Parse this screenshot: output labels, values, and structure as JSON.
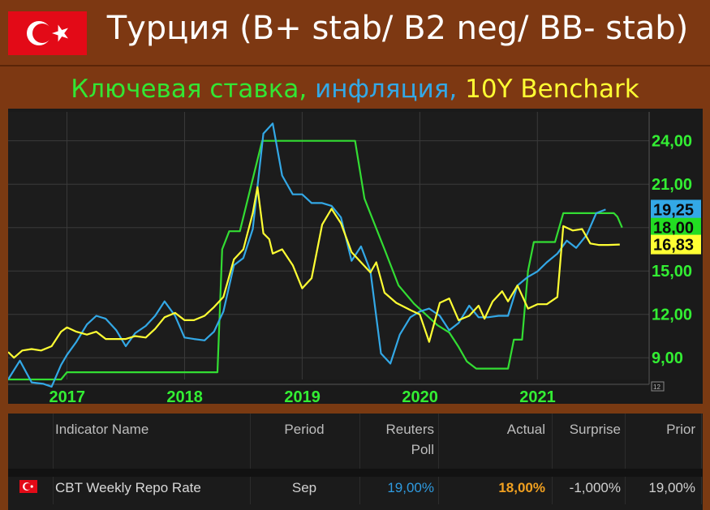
{
  "header": {
    "title": "Турция (B+ stab/ B2 neg/ BB- stab)",
    "flag_icon": "turkey-flag-icon"
  },
  "subtitle": {
    "part1": "Ключевая ставка,",
    "part2": " инфляция,",
    "part3": " 10Y Benchark",
    "colors": {
      "part1": "#33e633",
      "part2": "#33a8e6",
      "part3": "#ffff33"
    }
  },
  "chart_data": {
    "type": "line",
    "x_tick_labels": [
      "2017",
      "2018",
      "2019",
      "2020",
      "2021"
    ],
    "y_tick_labels": [
      "24,00",
      "21,00",
      "18,00",
      "15,00",
      "12,00",
      "9,00"
    ],
    "ylim": [
      7.5,
      26
    ],
    "xlim": [
      2016.5,
      2021.95
    ],
    "grid": true,
    "end_badges": [
      {
        "label": "19,25",
        "series": "inflation",
        "value": 19.25,
        "bg": "#33a8e6"
      },
      {
        "label": "18,00",
        "series": "policy_rate",
        "value": 18.0,
        "bg": "#22dd22"
      },
      {
        "label": "16,83",
        "series": "bond_10y",
        "value": 16.83,
        "bg": "#ffff33"
      }
    ],
    "small_tag": "12",
    "series": [
      {
        "key": "policy_rate",
        "color": "#33dd33",
        "points": [
          [
            2016.5,
            7.5
          ],
          [
            2016.95,
            7.5
          ],
          [
            2017.0,
            8.0
          ],
          [
            2018.28,
            8.0
          ],
          [
            2018.32,
            16.5
          ],
          [
            2018.38,
            17.75
          ],
          [
            2018.47,
            17.75
          ],
          [
            2018.66,
            24.0
          ],
          [
            2019.45,
            24.0
          ],
          [
            2019.53,
            20.0
          ],
          [
            2019.7,
            16.5
          ],
          [
            2019.82,
            14.0
          ],
          [
            2019.95,
            12.75
          ],
          [
            2020.05,
            12.0
          ],
          [
            2020.15,
            11.25
          ],
          [
            2020.25,
            10.75
          ],
          [
            2020.33,
            9.75
          ],
          [
            2020.4,
            8.75
          ],
          [
            2020.48,
            8.25
          ],
          [
            2020.75,
            8.25
          ],
          [
            2020.8,
            10.25
          ],
          [
            2020.87,
            10.25
          ],
          [
            2020.92,
            15.0
          ],
          [
            2020.97,
            17.0
          ],
          [
            2021.15,
            17.0
          ],
          [
            2021.22,
            19.0
          ],
          [
            2021.65,
            19.0
          ],
          [
            2021.68,
            18.75
          ],
          [
            2021.72,
            18.0
          ]
        ]
      },
      {
        "key": "inflation",
        "color": "#33a8e6",
        "points": [
          [
            2016.5,
            7.5
          ],
          [
            2016.6,
            8.8
          ],
          [
            2016.7,
            7.3
          ],
          [
            2016.8,
            7.2
          ],
          [
            2016.87,
            7.0
          ],
          [
            2016.95,
            8.5
          ],
          [
            2017.0,
            9.2
          ],
          [
            2017.08,
            10.1
          ],
          [
            2017.17,
            11.3
          ],
          [
            2017.25,
            11.9
          ],
          [
            2017.33,
            11.7
          ],
          [
            2017.42,
            10.9
          ],
          [
            2017.5,
            9.8
          ],
          [
            2017.58,
            10.7
          ],
          [
            2017.67,
            11.2
          ],
          [
            2017.75,
            11.9
          ],
          [
            2017.83,
            12.9
          ],
          [
            2017.92,
            11.9
          ],
          [
            2018.0,
            10.4
          ],
          [
            2018.08,
            10.3
          ],
          [
            2018.17,
            10.2
          ],
          [
            2018.25,
            10.8
          ],
          [
            2018.33,
            12.2
          ],
          [
            2018.42,
            15.4
          ],
          [
            2018.5,
            15.9
          ],
          [
            2018.58,
            17.9
          ],
          [
            2018.67,
            24.5
          ],
          [
            2018.75,
            25.2
          ],
          [
            2018.83,
            21.6
          ],
          [
            2018.92,
            20.3
          ],
          [
            2019.0,
            20.3
          ],
          [
            2019.08,
            19.7
          ],
          [
            2019.17,
            19.7
          ],
          [
            2019.25,
            19.5
          ],
          [
            2019.33,
            18.7
          ],
          [
            2019.42,
            15.7
          ],
          [
            2019.5,
            16.7
          ],
          [
            2019.58,
            15.0
          ],
          [
            2019.67,
            9.3
          ],
          [
            2019.75,
            8.6
          ],
          [
            2019.83,
            10.6
          ],
          [
            2019.92,
            11.8
          ],
          [
            2020.0,
            12.2
          ],
          [
            2020.08,
            12.4
          ],
          [
            2020.17,
            11.9
          ],
          [
            2020.25,
            10.9
          ],
          [
            2020.33,
            11.4
          ],
          [
            2020.42,
            12.6
          ],
          [
            2020.5,
            11.8
          ],
          [
            2020.58,
            11.8
          ],
          [
            2020.67,
            11.9
          ],
          [
            2020.75,
            11.9
          ],
          [
            2020.83,
            14.0
          ],
          [
            2020.92,
            14.6
          ],
          [
            2021.0,
            14.97
          ],
          [
            2021.08,
            15.6
          ],
          [
            2021.17,
            16.2
          ],
          [
            2021.25,
            17.1
          ],
          [
            2021.33,
            16.6
          ],
          [
            2021.42,
            17.5
          ],
          [
            2021.5,
            19.0
          ],
          [
            2021.58,
            19.25
          ]
        ]
      },
      {
        "key": "bond_10y",
        "color": "#ffff33",
        "points": [
          [
            2016.5,
            9.4
          ],
          [
            2016.55,
            9.0
          ],
          [
            2016.62,
            9.5
          ],
          [
            2016.7,
            9.6
          ],
          [
            2016.78,
            9.5
          ],
          [
            2016.87,
            9.8
          ],
          [
            2016.95,
            10.8
          ],
          [
            2017.0,
            11.1
          ],
          [
            2017.08,
            10.8
          ],
          [
            2017.17,
            10.6
          ],
          [
            2017.25,
            10.8
          ],
          [
            2017.33,
            10.3
          ],
          [
            2017.42,
            10.3
          ],
          [
            2017.5,
            10.3
          ],
          [
            2017.58,
            10.5
          ],
          [
            2017.67,
            10.4
          ],
          [
            2017.75,
            11.0
          ],
          [
            2017.83,
            11.8
          ],
          [
            2017.92,
            12.1
          ],
          [
            2018.0,
            11.6
          ],
          [
            2018.08,
            11.6
          ],
          [
            2018.17,
            11.9
          ],
          [
            2018.25,
            12.5
          ],
          [
            2018.33,
            13.2
          ],
          [
            2018.42,
            15.8
          ],
          [
            2018.5,
            16.5
          ],
          [
            2018.58,
            19.0
          ],
          [
            2018.62,
            20.8
          ],
          [
            2018.67,
            17.6
          ],
          [
            2018.72,
            17.2
          ],
          [
            2018.75,
            16.2
          ],
          [
            2018.83,
            16.5
          ],
          [
            2018.92,
            15.4
          ],
          [
            2019.0,
            13.8
          ],
          [
            2019.08,
            14.5
          ],
          [
            2019.17,
            18.2
          ],
          [
            2019.25,
            19.3
          ],
          [
            2019.33,
            18.3
          ],
          [
            2019.42,
            16.3
          ],
          [
            2019.5,
            15.6
          ],
          [
            2019.58,
            14.9
          ],
          [
            2019.63,
            15.6
          ],
          [
            2019.7,
            13.5
          ],
          [
            2019.8,
            12.8
          ],
          [
            2019.92,
            12.3
          ],
          [
            2020.0,
            12.0
          ],
          [
            2020.08,
            10.1
          ],
          [
            2020.17,
            12.8
          ],
          [
            2020.25,
            13.1
          ],
          [
            2020.33,
            11.6
          ],
          [
            2020.42,
            11.9
          ],
          [
            2020.5,
            12.6
          ],
          [
            2020.55,
            11.7
          ],
          [
            2020.62,
            12.9
          ],
          [
            2020.7,
            13.6
          ],
          [
            2020.75,
            12.9
          ],
          [
            2020.83,
            14.0
          ],
          [
            2020.92,
            12.4
          ],
          [
            2021.0,
            12.7
          ],
          [
            2021.08,
            12.7
          ],
          [
            2021.17,
            13.2
          ],
          [
            2021.22,
            18.1
          ],
          [
            2021.3,
            17.8
          ],
          [
            2021.38,
            17.9
          ],
          [
            2021.45,
            16.9
          ],
          [
            2021.52,
            16.8
          ],
          [
            2021.6,
            16.8
          ],
          [
            2021.7,
            16.83
          ]
        ]
      }
    ]
  },
  "table": {
    "headers": {
      "indicator": "Indicator Name",
      "period": "Period",
      "reuters_poll_line1": "Reuters",
      "reuters_poll_line2": "Poll",
      "actual": "Actual",
      "surprise": "Surprise",
      "prior": "Prior"
    },
    "row": {
      "flag_icon": "turkey-flag-icon",
      "indicator": "CBT Weekly Repo Rate",
      "period": "Sep",
      "reuters_poll": "19,00%",
      "actual": "18,00%",
      "surprise": "-1,000%",
      "prior": "19,00%",
      "colors": {
        "reuters_poll": "#2f9be0",
        "actual": "#f0a020"
      }
    }
  }
}
